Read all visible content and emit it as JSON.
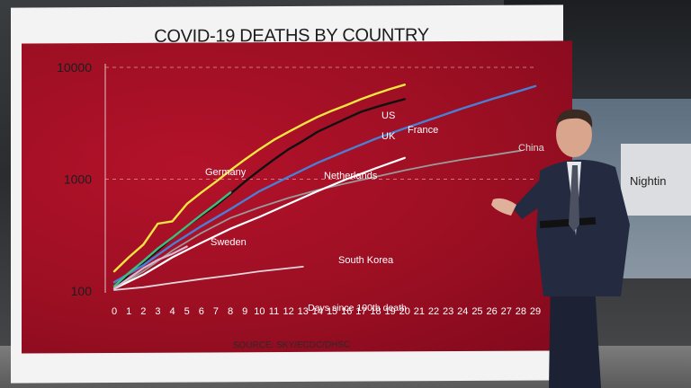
{
  "graphic": {
    "title": "COVID-19 DEATHS BY COUNTRY",
    "source": "SOURCE: SKY/ECDC/DHSC"
  },
  "background_sign": "Nightin",
  "colors": {
    "panel_red": "#a8112a",
    "US": "#f4e542",
    "UK": "#111111",
    "France": "#4a7fd6",
    "China": "#9a9a9a",
    "Germany": "#3fbf7f",
    "Netherlands": "#ffffff",
    "Sweden": "#d9b8d4",
    "South Korea": "#e3d7dd"
  },
  "chart_data": {
    "type": "line",
    "title": "COVID-19 DEATHS BY COUNTRY",
    "xlabel": "Days since 100th death",
    "ylabel": "",
    "yscale": "log",
    "xlim": [
      0,
      29
    ],
    "ylim": [
      100,
      10000
    ],
    "x_ticks": [
      "0",
      "1",
      "2",
      "3",
      "4",
      "5",
      "6",
      "7",
      "8",
      "9",
      "10",
      "11",
      "12",
      "13",
      "14",
      "15",
      "16",
      "17",
      "18",
      "19",
      "20",
      "21",
      "22",
      "23",
      "24",
      "25",
      "26",
      "27",
      "28",
      "29"
    ],
    "y_ticks": [
      "100",
      "1000",
      "10000"
    ],
    "grid": "dashed horizontal at 1000 and 10000",
    "series": [
      {
        "name": "US",
        "color": "#f4e542",
        "x": [
          0,
          1,
          2,
          3,
          4,
          5,
          6,
          7,
          8,
          9,
          10,
          11,
          12,
          13,
          14,
          15,
          16,
          17,
          18,
          19,
          20
        ],
        "y": [
          150,
          200,
          260,
          400,
          420,
          600,
          760,
          950,
          1200,
          1500,
          1850,
          2250,
          2650,
          3100,
          3600,
          4100,
          4600,
          5200,
          5800,
          6400,
          7000
        ]
      },
      {
        "name": "UK",
        "color": "#111111",
        "x": [
          0,
          1,
          2,
          3,
          4,
          5,
          6,
          7,
          8,
          9,
          10,
          11,
          12,
          13,
          14,
          15,
          16,
          17,
          18,
          19,
          20
        ],
        "y": [
          104,
          140,
          180,
          230,
          300,
          380,
          470,
          580,
          740,
          950,
          1200,
          1500,
          1850,
          2200,
          2650,
          3050,
          3500,
          4000,
          4400,
          4800,
          5200
        ]
      },
      {
        "name": "France",
        "color": "#4a7fd6",
        "x": [
          0,
          2,
          4,
          6,
          8,
          10,
          12,
          14,
          16,
          18,
          20,
          22,
          24,
          26,
          28,
          29
        ],
        "y": [
          120,
          170,
          260,
          380,
          540,
          780,
          1050,
          1400,
          1800,
          2300,
          2850,
          3500,
          4300,
          5200,
          6200,
          6800
        ]
      },
      {
        "name": "China",
        "color": "#9a9a9a",
        "x": [
          0,
          2,
          4,
          6,
          8,
          10,
          12,
          14,
          16,
          18,
          20,
          22,
          24,
          26,
          28
        ],
        "y": [
          106,
          150,
          230,
          330,
          450,
          560,
          680,
          800,
          920,
          1050,
          1200,
          1350,
          1500,
          1640,
          1800
        ]
      },
      {
        "name": "Germany",
        "color": "#3fbf7f",
        "x": [
          0,
          1,
          2,
          3,
          4,
          5,
          6,
          7,
          8
        ],
        "y": [
          110,
          145,
          185,
          240,
          300,
          380,
          480,
          600,
          760
        ]
      },
      {
        "name": "Netherlands",
        "color": "#ffffff",
        "x": [
          0,
          2,
          4,
          6,
          8,
          10,
          12,
          14,
          16,
          18,
          20
        ],
        "y": [
          105,
          140,
          200,
          270,
          360,
          460,
          600,
          780,
          1000,
          1250,
          1550
        ]
      },
      {
        "name": "Sweden",
        "color": "#d9b8d4",
        "x": [
          0,
          1,
          2,
          3,
          4,
          5
        ],
        "y": [
          105,
          130,
          160,
          190,
          215,
          250
        ]
      },
      {
        "name": "South Korea",
        "color": "#e3d7dd",
        "x": [
          0,
          2,
          4,
          6,
          8,
          10,
          12,
          13
        ],
        "y": [
          102,
          108,
          118,
          128,
          138,
          150,
          160,
          165
        ]
      }
    ],
    "labels": [
      {
        "name": "US",
        "series": "US"
      },
      {
        "name": "UK",
        "series": "UK"
      },
      {
        "name": "France",
        "series": "France"
      },
      {
        "name": "China",
        "series": "China"
      },
      {
        "name": "Germany",
        "series": "Germany"
      },
      {
        "name": "Netherlands",
        "series": "Netherlands"
      },
      {
        "name": "Sweden",
        "series": "Sweden"
      },
      {
        "name": "South Korea",
        "series": "South Korea"
      }
    ]
  }
}
